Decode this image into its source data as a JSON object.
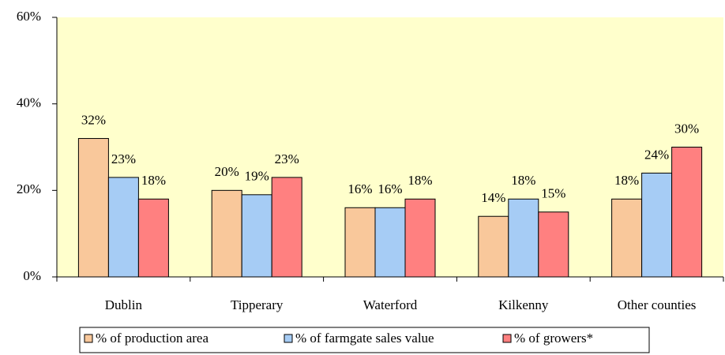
{
  "chart_data": {
    "type": "bar",
    "categories": [
      "Dublin",
      "Tipperary",
      "Waterford",
      "Kilkenny",
      "Other counties"
    ],
    "series": [
      {
        "name": "% of production area",
        "color": "#f9c89b",
        "values": [
          32,
          20,
          16,
          14,
          18
        ],
        "value_labels": [
          "32%",
          "20%",
          "16%",
          "14%",
          "18%"
        ]
      },
      {
        "name": "% of farmgate sales value",
        "color": "#a6ccf5",
        "values": [
          23,
          19,
          16,
          18,
          24
        ],
        "value_labels": [
          "23%",
          "19%",
          "16%",
          "18%",
          "24%"
        ]
      },
      {
        "name": "% of growers*",
        "color": "#ff8080",
        "values": [
          18,
          23,
          18,
          15,
          30
        ],
        "value_labels": [
          "18%",
          "23%",
          "18%",
          "15%",
          "30%"
        ]
      }
    ],
    "ylim": [
      0,
      60
    ],
    "yticks": [
      {
        "value": 0,
        "label": "0%"
      },
      {
        "value": 20,
        "label": "20%"
      },
      {
        "value": 40,
        "label": "40%"
      },
      {
        "value": 60,
        "label": "60%"
      }
    ],
    "background": "#ffffcc",
    "legend": "bottom"
  }
}
